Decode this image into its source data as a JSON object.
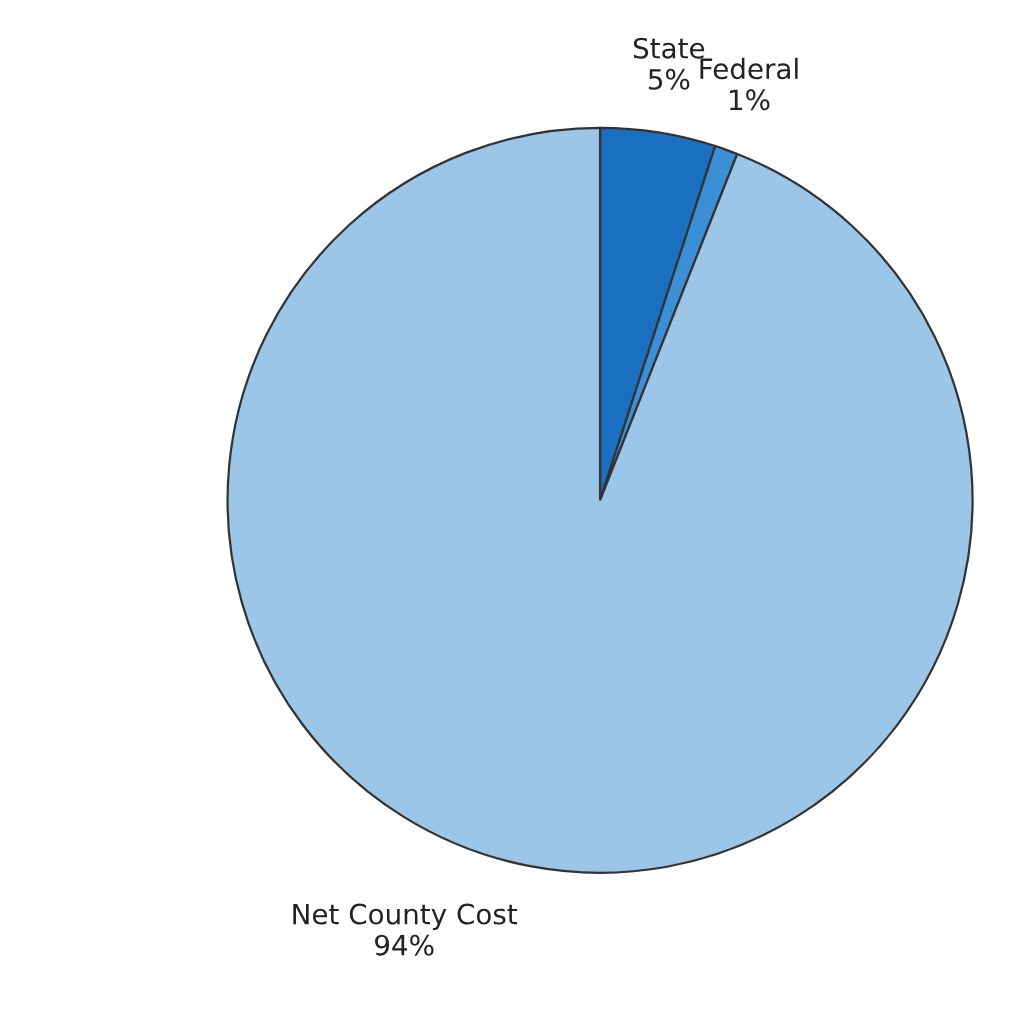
{
  "chart_data": {
    "type": "pie",
    "categories": [
      "State",
      "Federal",
      "Net County Cost"
    ],
    "values": [
      5,
      1,
      94
    ],
    "value_labels": [
      "5%",
      "1%",
      "94%"
    ],
    "colors": [
      "#1a6fc0",
      "#3a8fd6",
      "#9cc6e8"
    ]
  }
}
